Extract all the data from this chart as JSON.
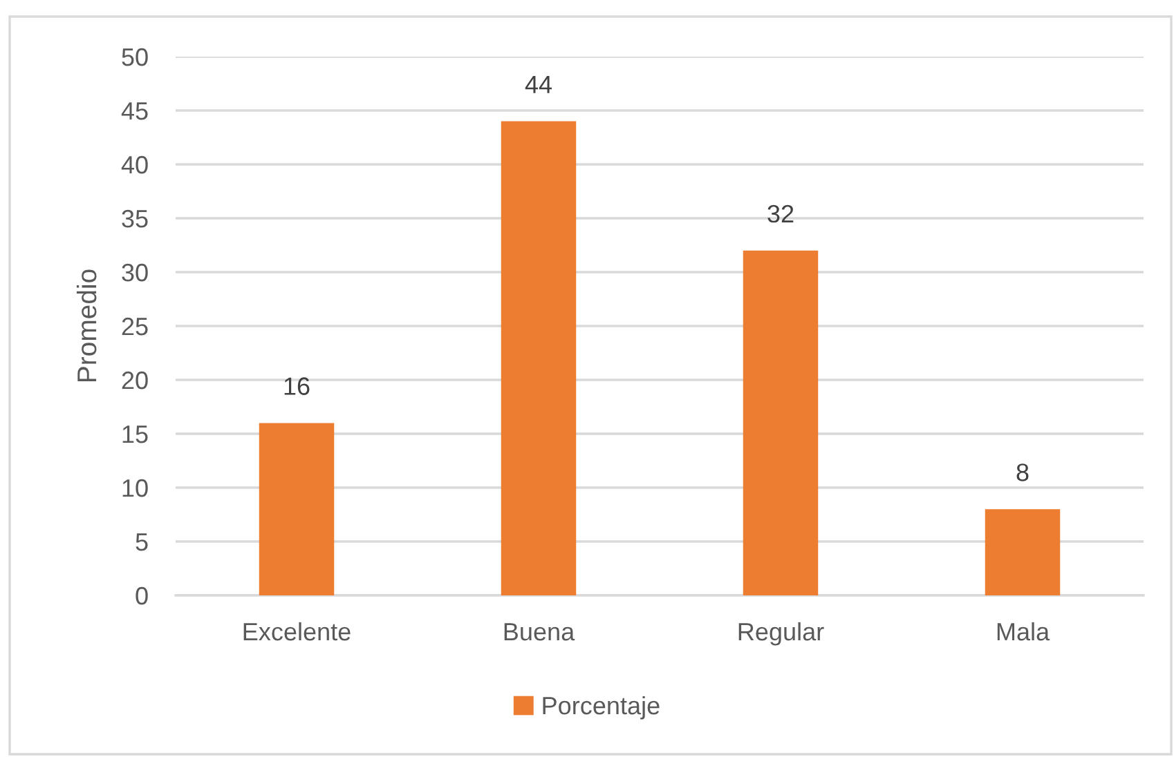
{
  "chart_data": {
    "type": "bar",
    "ylabel": "Promedio",
    "categories": [
      "Excelente",
      "Buena",
      "Regular",
      "Mala"
    ],
    "series": [
      {
        "name": "Porcentaje",
        "color": "#ed7d31",
        "values": [
          16,
          44,
          32,
          8
        ]
      }
    ],
    "ylim": [
      0,
      50
    ],
    "yticks": [
      0,
      5,
      10,
      15,
      20,
      25,
      30,
      35,
      40,
      45,
      50
    ],
    "grid": "y",
    "legend": "bottom",
    "data_labels": true
  }
}
